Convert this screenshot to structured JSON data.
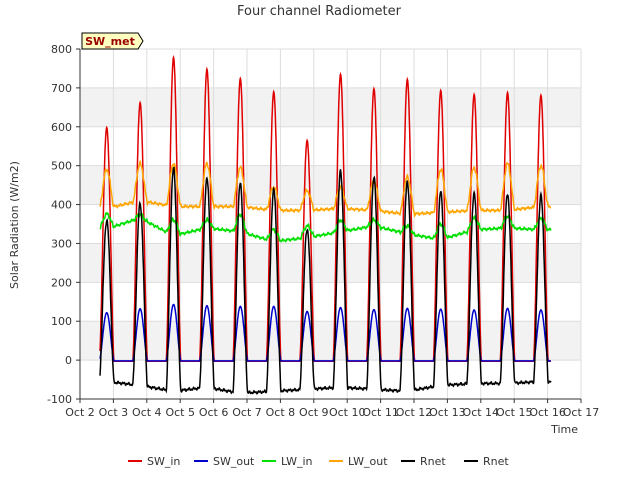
{
  "chart_data": {
    "type": "line",
    "title": "Four channel Radiometer",
    "xlabel": "Time",
    "ylabel": "Solar Radiation (W/m2)",
    "ylim": [
      -100,
      800
    ],
    "xlim": [
      2,
      17
    ],
    "yticks": [
      -100,
      0,
      100,
      200,
      300,
      400,
      500,
      600,
      700,
      800
    ],
    "xticks": [
      {
        "value": 2,
        "label": "Oct 2"
      },
      {
        "value": 3,
        "label": "Oct 3"
      },
      {
        "value": 4,
        "label": "Oct 4"
      },
      {
        "value": 5,
        "label": "Oct 5"
      },
      {
        "value": 6,
        "label": "Oct 6"
      },
      {
        "value": 7,
        "label": "Oct 7"
      },
      {
        "value": 8,
        "label": "Oct 8"
      },
      {
        "value": 9,
        "label": "Oct 9"
      },
      {
        "value": 10,
        "label": "Oct 10"
      },
      {
        "value": 11,
        "label": "Oct 11"
      },
      {
        "value": 12,
        "label": "Oct 12"
      },
      {
        "value": 13,
        "label": "Oct 13"
      },
      {
        "value": 14,
        "label": "Oct 14"
      },
      {
        "value": 15,
        "label": "Oct 15"
      },
      {
        "value": 16,
        "label": "Oct 16"
      },
      {
        "value": 17,
        "label": "Oct 17"
      }
    ],
    "badge": "SW_met",
    "days": [
      2.8,
      3.8,
      4.8,
      5.8,
      6.8,
      7.8,
      8.8,
      9.8,
      10.8,
      11.8,
      12.8,
      13.8,
      14.8,
      15.8
    ],
    "series": [
      {
        "name": "SW_in",
        "color": "#e00000",
        "night": -3,
        "peaks": [
          598,
          662,
          778,
          748,
          724,
          690,
          565,
          735,
          698,
          722,
          693,
          683,
          688,
          681
        ]
      },
      {
        "name": "SW_out",
        "color": "#0000cc",
        "night": -2,
        "peaks": [
          122,
          132,
          143,
          140,
          138,
          138,
          125,
          135,
          130,
          133,
          131,
          129,
          133,
          129
        ]
      },
      {
        "name": "LW_in",
        "color": "#00e000",
        "night_levels": [
          338,
          365,
          320,
          340,
          330,
          305,
          315,
          330,
          345,
          325,
          310,
          335,
          340,
          335
        ],
        "peaks": [
          375,
          375,
          360,
          360,
          375,
          335,
          345,
          360,
          360,
          345,
          350,
          365,
          370,
          365
        ]
      },
      {
        "name": "LW_out",
        "color": "#ffa500",
        "night_levels": [
          390,
          410,
          395,
          395,
          395,
          385,
          385,
          390,
          385,
          375,
          380,
          385,
          385,
          395
        ],
        "peaks": [
          490,
          505,
          505,
          505,
          495,
          445,
          435,
          445,
          460,
          470,
          490,
          495,
          505,
          500
        ]
      },
      {
        "name": "Rnet",
        "color": "#000000",
        "night_levels": [
          -55,
          -65,
          -80,
          -70,
          -85,
          -80,
          -75,
          -70,
          -75,
          -80,
          -65,
          -60,
          -60,
          -55
        ],
        "peaks": [
          360,
          403,
          492,
          470,
          455,
          438,
          338,
          485,
          470,
          460,
          432,
          430,
          428,
          422
        ]
      },
      {
        "name": "Rnet",
        "color": "#000000",
        "legend_only": true
      }
    ]
  }
}
